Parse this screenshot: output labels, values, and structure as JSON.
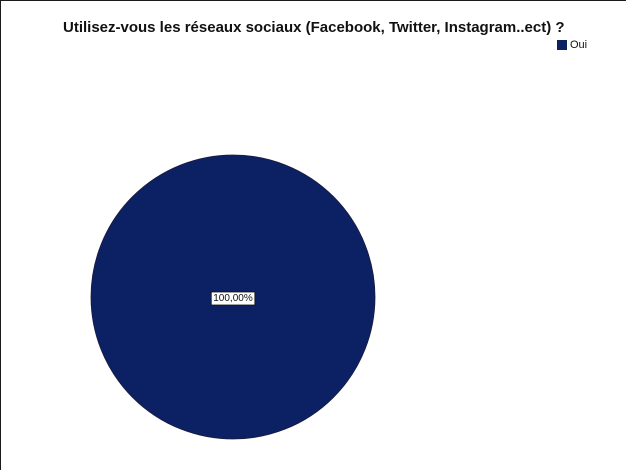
{
  "chart_data": {
    "type": "pie",
    "title": "Utilisez-vous les réseaux sociaux (Facebook, Twitter, Instagram..ect) ?",
    "categories": [
      "Oui"
    ],
    "values": [
      100
    ],
    "data_labels": [
      "100,00%"
    ],
    "colors": [
      "#0c2064"
    ],
    "legend": {
      "placement": "top-right",
      "entries": [
        "Oui"
      ]
    }
  }
}
